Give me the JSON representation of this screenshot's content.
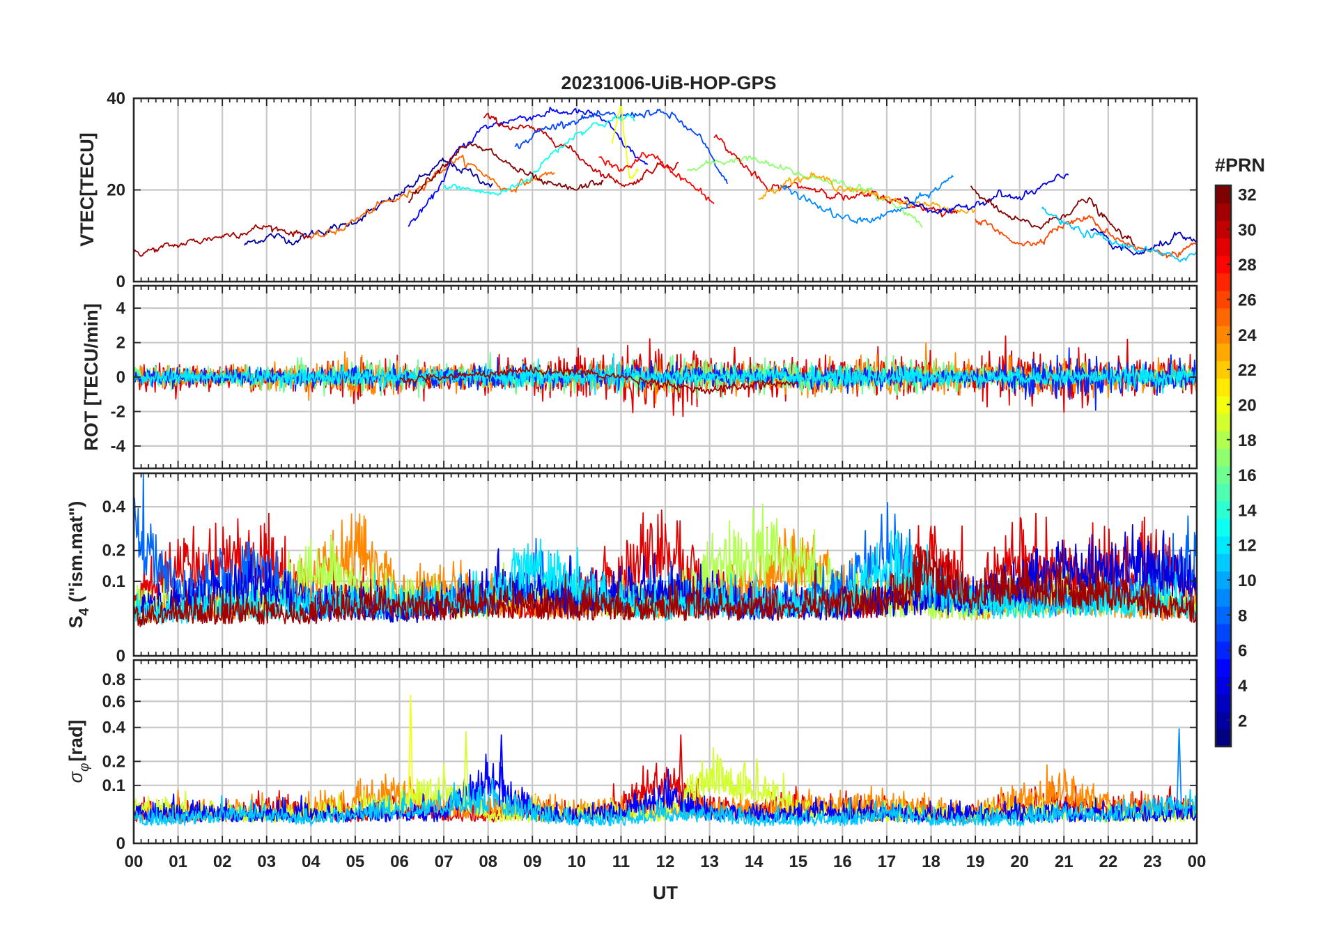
{
  "chart_data": {
    "type": "line",
    "title": "20231006-UiB-HOP-GPS",
    "x_label": "UT",
    "x_ticks": [
      "00",
      "01",
      "02",
      "03",
      "04",
      "05",
      "06",
      "07",
      "08",
      "09",
      "10",
      "11",
      "12",
      "13",
      "14",
      "15",
      "16",
      "17",
      "18",
      "19",
      "20",
      "21",
      "22",
      "23",
      "00"
    ],
    "x_range": [
      0,
      24
    ],
    "colorbar": {
      "label": "#PRN",
      "range": [
        1,
        32
      ],
      "ticks": [
        "2",
        "4",
        "6",
        "8",
        "10",
        "12",
        "14",
        "16",
        "18",
        "20",
        "22",
        "24",
        "26",
        "28",
        "30",
        "32"
      ],
      "tick_values": [
        2,
        4,
        6,
        8,
        10,
        12,
        14,
        16,
        18,
        20,
        22,
        24,
        26,
        28,
        30,
        32
      ],
      "colormap": "jet",
      "colors": [
        "#00008f",
        "#0000ff",
        "#0080ff",
        "#00ffff",
        "#80ff80",
        "#ffff00",
        "#ff8000",
        "#ff0000",
        "#800000"
      ]
    },
    "panels": [
      {
        "id": "vtec",
        "ylabel": "VTEC[TECU]",
        "ylim": [
          0,
          40
        ],
        "yticks": [
          "0",
          "20",
          "40"
        ],
        "ytick_values": [
          0,
          20,
          40
        ],
        "series_shape": "smooth",
        "series": [
          {
            "prn": 2,
            "t0": 2.5,
            "t1": 8.1,
            "values": [
              8,
              10,
              9,
              11,
              12,
              15,
              18,
              22,
              26,
              24,
              21
            ]
          },
          {
            "prn": 31,
            "t0": 0.0,
            "t1": 4.0,
            "values": [
              6,
              7,
              8,
              9,
              10,
              11,
              12,
              11,
              10
            ]
          },
          {
            "prn": 25,
            "t0": 4.0,
            "t1": 9.5,
            "values": [
              9,
              11,
              14,
              17,
              19,
              23,
              27,
              24,
              20,
              22,
              24
            ]
          },
          {
            "prn": 5,
            "t0": 6.2,
            "t1": 11.6,
            "values": [
              12,
              18,
              28,
              33,
              35,
              36,
              37,
              37,
              36,
              30,
              25
            ]
          },
          {
            "prn": 30,
            "t0": 7.9,
            "t1": 12.3,
            "values": [
              36,
              34,
              33,
              31,
              27,
              23,
              21,
              25,
              26
            ]
          },
          {
            "prn": 7,
            "t0": 8.6,
            "t1": 13.4,
            "values": [
              29,
              33,
              35,
              36,
              36,
              37,
              36,
              31,
              21
            ]
          },
          {
            "prn": 13,
            "t0": 7.0,
            "t1": 11.3,
            "values": [
              21,
              20,
              19,
              22,
              28,
              33,
              35,
              36
            ]
          },
          {
            "prn": 20,
            "t0": 10.8,
            "t1": 11.4,
            "values": [
              30,
              38,
              22,
              25
            ]
          },
          {
            "prn": 32,
            "t0": 6.2,
            "t1": 10.6,
            "values": [
              18,
              24,
              30,
              28,
              24,
              21,
              20,
              22
            ]
          },
          {
            "prn": 28,
            "t0": 10.5,
            "t1": 13.1,
            "values": [
              27,
              24,
              28,
              25,
              21,
              17
            ]
          },
          {
            "prn": 17,
            "t0": 12.5,
            "t1": 17.8,
            "values": [
              24,
              26,
              27,
              25,
              23,
              22,
              20,
              17,
              13
            ]
          },
          {
            "prn": 29,
            "t0": 13.1,
            "t1": 18.6,
            "values": [
              32,
              26,
              20,
              21,
              20,
              18,
              19,
              17,
              16,
              15
            ]
          },
          {
            "prn": 23,
            "t0": 14.1,
            "t1": 19.0,
            "values": [
              18,
              22,
              23,
              21,
              19,
              18,
              17,
              16,
              15
            ]
          },
          {
            "prn": 9,
            "t0": 14.6,
            "t1": 18.5,
            "values": [
              21,
              18,
              15,
              13,
              14,
              16,
              19,
              23
            ]
          },
          {
            "prn": 4,
            "t0": 17.4,
            "t1": 21.1,
            "values": [
              18,
              16,
              15,
              17,
              19,
              18,
              21,
              23
            ]
          },
          {
            "prn": 32,
            "t0": 18.9,
            "t1": 22.6,
            "values": [
              21,
              16,
              13,
              12,
              15,
              18,
              12,
              8
            ]
          },
          {
            "prn": 26,
            "t0": 19.0,
            "t1": 24.0,
            "values": [
              14,
              10,
              8,
              12,
              14,
              10,
              7,
              6,
              8
            ]
          },
          {
            "prn": 3,
            "t0": 21.6,
            "t1": 24.0,
            "values": [
              11,
              8,
              6,
              7,
              10,
              8
            ]
          },
          {
            "prn": 11,
            "t0": 20.5,
            "t1": 24.0,
            "values": [
              16,
              12,
              10,
              8,
              7,
              5,
              6
            ]
          }
        ]
      },
      {
        "id": "rot",
        "ylabel": "ROT [TECU/min]",
        "ylim": [
          -5.3,
          5.3
        ],
        "yticks": [
          "-4",
          "-2",
          "0",
          "2",
          "4"
        ],
        "ytick_values": [
          -4,
          -2,
          0,
          2,
          4
        ],
        "series_shape": "noise",
        "series": [
          {
            "prn": 29,
            "t0": 0.0,
            "t1": 24.0,
            "values": [
              0.6,
              0.7,
              0.6,
              0.6,
              0.9,
              1.1,
              0.8,
              0.7,
              0.9,
              0.8,
              1.4,
              1.6,
              1.5,
              1.2,
              1.1,
              1.0,
              0.9,
              0.9,
              1.0,
              0.9,
              1.5,
              1.6,
              1.2,
              1.0,
              1.0
            ]
          },
          {
            "prn": 24,
            "t0": 0.0,
            "t1": 24.0,
            "values": [
              0.5,
              0.5,
              0.6,
              0.7,
              0.8,
              1.1,
              0.9,
              0.6,
              0.5,
              0.5,
              0.6,
              0.8,
              0.9,
              0.7,
              0.7,
              0.8,
              0.8,
              1.0,
              1.1,
              0.9,
              1.0,
              1.0,
              0.8,
              0.7,
              0.6
            ]
          },
          {
            "prn": 16,
            "t0": 0.0,
            "t1": 24.0,
            "values": [
              0.5,
              0.5,
              0.5,
              0.6,
              0.8,
              0.9,
              0.8,
              0.6,
              0.6,
              0.7,
              0.6,
              0.7,
              0.8,
              1.0,
              0.9,
              0.8,
              0.7,
              0.9,
              0.8,
              0.6,
              0.7,
              0.6,
              0.6,
              0.6,
              0.5
            ]
          },
          {
            "prn": 6,
            "t0": 0.0,
            "t1": 24.0,
            "values": [
              0.4,
              0.5,
              0.4,
              0.5,
              0.5,
              0.6,
              0.6,
              0.5,
              0.7,
              0.6,
              0.5,
              0.6,
              0.6,
              0.5,
              0.5,
              0.6,
              0.5,
              0.6,
              0.5,
              0.6,
              0.9,
              1.1,
              1.0,
              0.9,
              0.8
            ]
          },
          {
            "prn": 12,
            "t0": 0.0,
            "t1": 24.0,
            "values": [
              0.3,
              0.4,
              0.4,
              0.4,
              0.4,
              0.5,
              0.5,
              0.4,
              0.4,
              0.7,
              0.5,
              0.8,
              0.5,
              0.4,
              0.4,
              0.5,
              0.5,
              0.6,
              0.5,
              0.4,
              0.4,
              0.4,
              0.4,
              0.6,
              0.5
            ]
          },
          {
            "prn": 31,
            "t0": 6.0,
            "t1": 15.0,
            "trend": [
              -0.2,
              0.0,
              0.2,
              0.4,
              0.3,
              0.0,
              -0.4,
              -0.8,
              -0.5,
              -0.3
            ]
          }
        ]
      },
      {
        "id": "s4",
        "ylabel": "S4 (\"ism.mat\")",
        "ylabel_parts": {
          "main": "S",
          "sub": "4",
          "rest": "(\"ism.mat\")"
        },
        "ylim": [
          0,
          0.6
        ],
        "scale": "sqrt",
        "yticks": [
          "0",
          "0.1",
          "0.2",
          "0.4"
        ],
        "ytick_values": [
          0,
          0.1,
          0.2,
          0.4
        ],
        "series_shape": "noise",
        "series": [
          {
            "prn": 29,
            "t0": 0.0,
            "t1": 24.0,
            "values": [
              0.05,
              0.18,
              0.16,
              0.2,
              0.06,
              0.08,
              0.05,
              0.05,
              0.06,
              0.05,
              0.06,
              0.12,
              0.25,
              0.08,
              0.06,
              0.07,
              0.05,
              0.06,
              0.22,
              0.06,
              0.2,
              0.16,
              0.16,
              0.18,
              0.08
            ]
          },
          {
            "prn": 24,
            "t0": 0.0,
            "t1": 24.0,
            "values": [
              0.04,
              0.05,
              0.05,
              0.06,
              0.1,
              0.24,
              0.08,
              0.1,
              0.07,
              0.06,
              0.05,
              0.06,
              0.05,
              0.07,
              0.12,
              0.2,
              0.1,
              0.08,
              0.06,
              0.05,
              0.06,
              0.07,
              0.06,
              0.05,
              0.05
            ]
          },
          {
            "prn": 18,
            "t0": 0.0,
            "t1": 24.0,
            "values": [
              0.05,
              0.06,
              0.07,
              0.07,
              0.15,
              0.12,
              0.08,
              0.06,
              0.05,
              0.1,
              0.07,
              0.06,
              0.07,
              0.15,
              0.2,
              0.18,
              0.09,
              0.06,
              0.05,
              0.05,
              0.06,
              0.07,
              0.06,
              0.09,
              0.05
            ]
          },
          {
            "prn": 8,
            "t0": 0.0,
            "t1": 24.0,
            "values": [
              0.3,
              0.08,
              0.12,
              0.14,
              0.06,
              0.05,
              0.05,
              0.06,
              0.06,
              0.12,
              0.08,
              0.07,
              0.09,
              0.06,
              0.05,
              0.06,
              0.1,
              0.22,
              0.08,
              0.06,
              0.07,
              0.06,
              0.07,
              0.1,
              0.2
            ]
          },
          {
            "prn": 4,
            "t0": 0.0,
            "t1": 24.0,
            "values": [
              0.06,
              0.05,
              0.08,
              0.1,
              0.05,
              0.05,
              0.04,
              0.05,
              0.1,
              0.09,
              0.06,
              0.08,
              0.1,
              0.07,
              0.05,
              0.05,
              0.05,
              0.06,
              0.07,
              0.06,
              0.1,
              0.16,
              0.15,
              0.18,
              0.1
            ]
          },
          {
            "prn": 12,
            "t0": 0.0,
            "t1": 24.0,
            "values": [
              0.04,
              0.04,
              0.05,
              0.05,
              0.05,
              0.06,
              0.06,
              0.06,
              0.08,
              0.16,
              0.1,
              0.06,
              0.05,
              0.06,
              0.06,
              0.05,
              0.06,
              0.18,
              0.09,
              0.06,
              0.05,
              0.06,
              0.06,
              0.06,
              0.05
            ]
          },
          {
            "prn": 31,
            "t0": 0.0,
            "t1": 24.0,
            "values": [
              0.03,
              0.04,
              0.04,
              0.04,
              0.04,
              0.05,
              0.05,
              0.05,
              0.06,
              0.05,
              0.05,
              0.05,
              0.05,
              0.05,
              0.05,
              0.05,
              0.06,
              0.06,
              0.14,
              0.08,
              0.1,
              0.09,
              0.08,
              0.06,
              0.04
            ]
          }
        ]
      },
      {
        "id": "sigma_phi",
        "ylabel": "σφ[rad]",
        "ylabel_parts": {
          "main": "σ",
          "sub": "φ",
          "rest": "[rad]"
        },
        "ylim": [
          0,
          1.0
        ],
        "scale": "sqrt",
        "yticks": [
          "0",
          "0.1",
          "0.2",
          "0.4",
          "0.6",
          "0.8"
        ],
        "ytick_values": [
          0,
          0.1,
          0.2,
          0.4,
          0.6,
          0.8
        ],
        "series_shape": "noise",
        "series": [
          {
            "prn": 29,
            "t0": 0.0,
            "t1": 24.0,
            "values": [
              0.03,
              0.03,
              0.03,
              0.05,
              0.03,
              0.03,
              0.04,
              0.03,
              0.03,
              0.03,
              0.03,
              0.05,
              0.14,
              0.05,
              0.03,
              0.05,
              0.04,
              0.03,
              0.03,
              0.03,
              0.05,
              0.06,
              0.04,
              0.05,
              0.04
            ]
          },
          {
            "prn": 24,
            "t0": 0.0,
            "t1": 24.0,
            "values": [
              0.03,
              0.03,
              0.03,
              0.04,
              0.04,
              0.06,
              0.09,
              0.04,
              0.04,
              0.05,
              0.03,
              0.04,
              0.04,
              0.04,
              0.04,
              0.05,
              0.05,
              0.05,
              0.04,
              0.03,
              0.07,
              0.1,
              0.05,
              0.04,
              0.04
            ]
          },
          {
            "prn": 19,
            "t0": 0.0,
            "t1": 24.0,
            "values": [
              0.04,
              0.04,
              0.03,
              0.03,
              0.03,
              0.04,
              0.05,
              0.1,
              0.03,
              0.03,
              0.03,
              0.03,
              0.03,
              0.15,
              0.11,
              0.04,
              0.03,
              0.03,
              0.03,
              0.03,
              0.03,
              0.03,
              0.03,
              0.03,
              0.03
            ]
          },
          {
            "prn": 5,
            "t0": 0.0,
            "t1": 24.0,
            "values": [
              0.03,
              0.03,
              0.03,
              0.03,
              0.03,
              0.03,
              0.03,
              0.03,
              0.14,
              0.03,
              0.03,
              0.03,
              0.08,
              0.03,
              0.03,
              0.03,
              0.03,
              0.03,
              0.03,
              0.03,
              0.03,
              0.03,
              0.03,
              0.03,
              0.03
            ]
          },
          {
            "prn": 11,
            "t0": 0.0,
            "t1": 24.0,
            "values": [
              0.02,
              0.02,
              0.03,
              0.03,
              0.02,
              0.03,
              0.04,
              0.05,
              0.06,
              0.03,
              0.02,
              0.02,
              0.03,
              0.03,
              0.02,
              0.02,
              0.02,
              0.03,
              0.02,
              0.02,
              0.02,
              0.03,
              0.03,
              0.04,
              0.05
            ]
          }
        ],
        "spikes": [
          {
            "t": 6.25,
            "value": 0.65,
            "prn": 20
          },
          {
            "t": 23.6,
            "value": 0.39,
            "prn": 9
          },
          {
            "t": 8.3,
            "value": 0.35,
            "prn": 5
          },
          {
            "t": 12.35,
            "value": 0.35,
            "prn": 29
          },
          {
            "t": 7.5,
            "value": 0.37,
            "prn": 19
          }
        ]
      }
    ]
  }
}
